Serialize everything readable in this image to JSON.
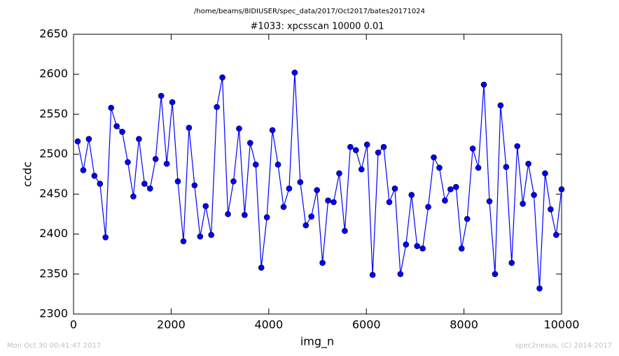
{
  "chart_data": {
    "type": "line",
    "suptitle": "/home/beams/8IDIUSER/spec_data/2017/Oct2017/bates20171024",
    "title": "#1033: xpcsscan 10000 0.01",
    "x_label": "img_n",
    "y_label": "ccdc",
    "footer_left": "Mon Oct 30 00:41:47 2017",
    "footer_right": "spec2nexus, (C) 2014-2017",
    "x": [
      86,
      200,
      314,
      428,
      542,
      656,
      770,
      884,
      998,
      1112,
      1226,
      1340,
      1454,
      1568,
      1682,
      1796,
      1910,
      2024,
      2138,
      2252,
      2366,
      2480,
      2594,
      2708,
      2822,
      2936,
      3050,
      3164,
      3278,
      3392,
      3506,
      3620,
      3734,
      3848,
      3962,
      4076,
      4190,
      4304,
      4418,
      4532,
      4646,
      4760,
      4874,
      4988,
      5102,
      5216,
      5330,
      5444,
      5558,
      5672,
      5786,
      5900,
      6014,
      6128,
      6242,
      6356,
      6470,
      6584,
      6698,
      6812,
      6926,
      7040,
      7154,
      7268,
      7382,
      7496,
      7610,
      7724,
      7838,
      7952,
      8066,
      8180,
      8294,
      8408,
      8522,
      8636,
      8750,
      8864,
      8978,
      9092,
      9206,
      9320,
      9434,
      9548,
      9662,
      9776,
      9890,
      10000
    ],
    "series": [
      {
        "color": "#0000ff",
        "values": [
          2516,
          2480,
          2519,
          2473,
          2463,
          2396,
          2558,
          2535,
          2528,
          2490,
          2447,
          2519,
          2463,
          2457,
          2494,
          2573,
          2488,
          2565,
          2466,
          2391,
          2533,
          2461,
          2397,
          2435,
          2399,
          2559,
          2596,
          2425,
          2466,
          2532,
          2424,
          2514,
          2487,
          2358,
          2421,
          2530,
          2487,
          2434,
          2457,
          2602,
          2465,
          2411,
          2422,
          2455,
          2364,
          2442,
          2440,
          2476,
          2404,
          2509,
          2505,
          2481,
          2512,
          2349,
          2502,
          2509,
          2440,
          2457,
          2350,
          2387,
          2449,
          2385,
          2382,
          2434,
          2496,
          2483,
          2442,
          2456,
          2459,
          2382,
          2419,
          2507,
          2483,
          2587,
          2441,
          2350,
          2561,
          2484,
          2364,
          2510,
          2438,
          2488,
          2449,
          2332,
          2476,
          2431,
          2399,
          2456
        ]
      }
    ],
    "xlim": [
      0,
      10000
    ],
    "xticks": [
      0,
      2000,
      4000,
      6000,
      8000,
      10000
    ],
    "ylim": [
      2300,
      2650
    ],
    "yticks": [
      2300,
      2350,
      2400,
      2450,
      2500,
      2550,
      2600,
      2650
    ]
  }
}
